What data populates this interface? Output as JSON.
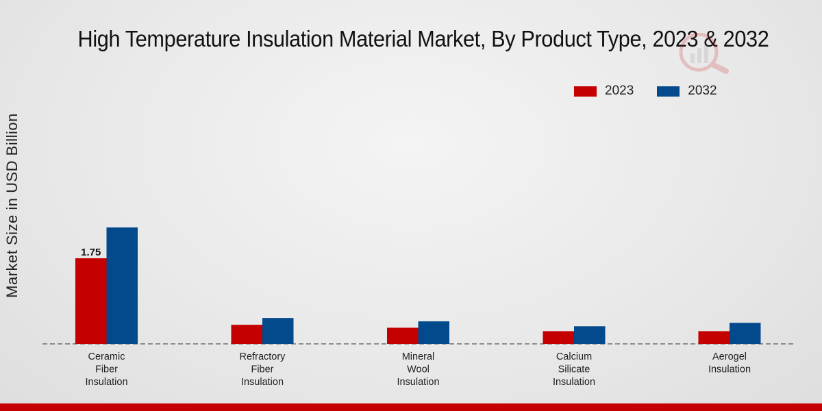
{
  "chart_data": {
    "type": "bar",
    "title": "High Temperature Insulation Material Market, By Product Type, 2023 & 2032",
    "xlabel": "",
    "ylabel": "Market Size in USD Billion",
    "categories": [
      [
        "Ceramic",
        "Fiber",
        "Insulation"
      ],
      [
        "Refractory",
        "Fiber",
        "Insulation"
      ],
      [
        "Mineral",
        "Wool",
        "Insulation"
      ],
      [
        "Calcium",
        "Silicate",
        "Insulation"
      ],
      [
        "Aerogel",
        "Insulation"
      ]
    ],
    "series": [
      {
        "name": "2023",
        "color": "#c40000",
        "values": [
          1.75,
          0.39,
          0.33,
          0.26,
          0.26
        ]
      },
      {
        "name": "2032",
        "color": "#034a8c",
        "values": [
          2.38,
          0.53,
          0.46,
          0.36,
          0.43
        ]
      }
    ],
    "data_labels": [
      {
        "series": 0,
        "index": 0,
        "text": "1.75"
      }
    ],
    "ylim": [
      0,
      5.42
    ],
    "legend_position": "top-right",
    "grid": false
  },
  "footer_color": "#c40000"
}
